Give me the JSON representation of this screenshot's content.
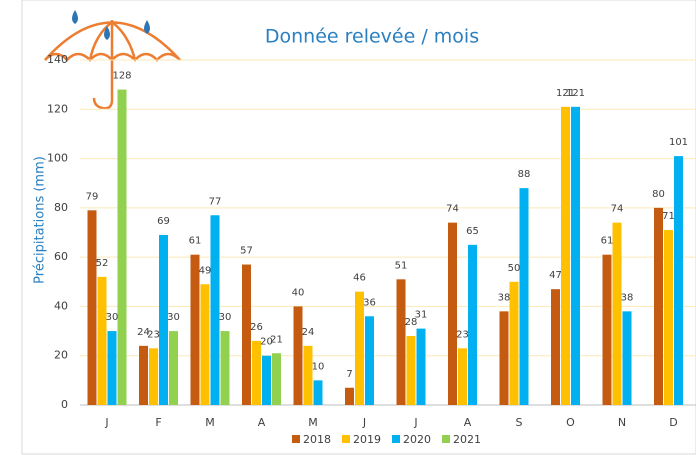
{
  "chart_data": {
    "type": "bar",
    "title": "Donnée relevée / mois",
    "y_label": "Précipitations (mm)",
    "categories": [
      "J",
      "F",
      "M",
      "A",
      "M",
      "J",
      "J",
      "A",
      "S",
      "O",
      "N",
      "D"
    ],
    "series": [
      {
        "name": "2018",
        "color": "#c55a11",
        "values": [
          79,
          24,
          61,
          57,
          40,
          7,
          51,
          74,
          38,
          47,
          61,
          80
        ]
      },
      {
        "name": "2019",
        "color": "#ffc000",
        "values": [
          52,
          23,
          49,
          26,
          24,
          46,
          28,
          23,
          50,
          121,
          74,
          71
        ]
      },
      {
        "name": "2020",
        "color": "#00b0f0",
        "values": [
          30,
          69,
          77,
          20,
          10,
          36,
          31,
          65,
          88,
          121,
          38,
          101
        ]
      },
      {
        "name": "2021",
        "color": "#92d050",
        "values": [
          128,
          30,
          30,
          21,
          null,
          null,
          null,
          null,
          null,
          null,
          null,
          null
        ]
      }
    ],
    "ylim": [
      0,
      140
    ],
    "yticks": [
      0,
      20,
      40,
      60,
      80,
      100,
      120,
      140
    ],
    "grid": true
  }
}
